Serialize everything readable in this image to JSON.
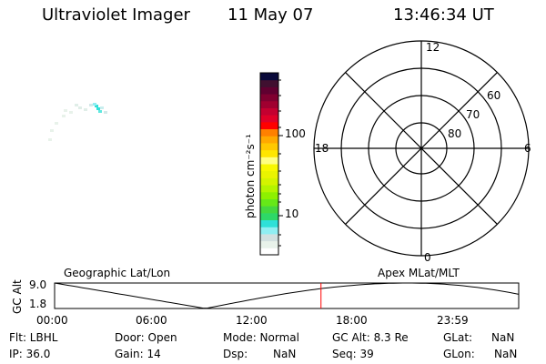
{
  "header": {
    "instrument": "Ultraviolet Imager",
    "date": "11 May 07",
    "time": "13:46:34 UT"
  },
  "colorbar": {
    "label": "photon cm⁻²s⁻¹",
    "ticks": [
      "100",
      "10"
    ],
    "colors": [
      "#ffffff",
      "#e8f2ea",
      "#d2e0e0",
      "#90eef2",
      "#2ee0d8",
      "#2ed868",
      "#44d840",
      "#66e818",
      "#8ef000",
      "#b4f400",
      "#d4f400",
      "#eaf400",
      "#f8f800",
      "#ffff80",
      "#ffe600",
      "#ffc800",
      "#ffa800",
      "#ff8000",
      "#ff0000",
      "#e00028",
      "#c40030",
      "#a00030",
      "#800030",
      "#600030",
      "#401030",
      "#0a0a3a"
    ]
  },
  "polar": {
    "labels_mlt": [
      "12",
      "6",
      "0",
      "18"
    ],
    "labels_mlat": [
      "80",
      "70",
      "60"
    ]
  },
  "timeline": {
    "ylabel": "GC Alt",
    "y_ticks": [
      "9.0",
      "1.8"
    ],
    "left_label": "Geographic Lat/Lon",
    "right_label": "Apex MLat/MLT",
    "x_ticks": [
      "00:00",
      "06:00",
      "12:00",
      "18:00",
      "23:59"
    ],
    "current_time_hours": 13.776,
    "marker_color": "#ff0000"
  },
  "status": {
    "flt": "Flt: LBHL",
    "ip": "IP: 36.0",
    "door": "Door: Open",
    "gain": "Gain: 14",
    "mode": "Mode: Normal",
    "dsp_label": "Dsp:",
    "dsp_value": "NaN",
    "gc_alt": "GC Alt: 8.3 Re",
    "seq": "Seq: 39",
    "glat_label": "GLat:",
    "glat_value": "NaN",
    "glon_label": "GLon:",
    "glon_value": "NaN"
  }
}
